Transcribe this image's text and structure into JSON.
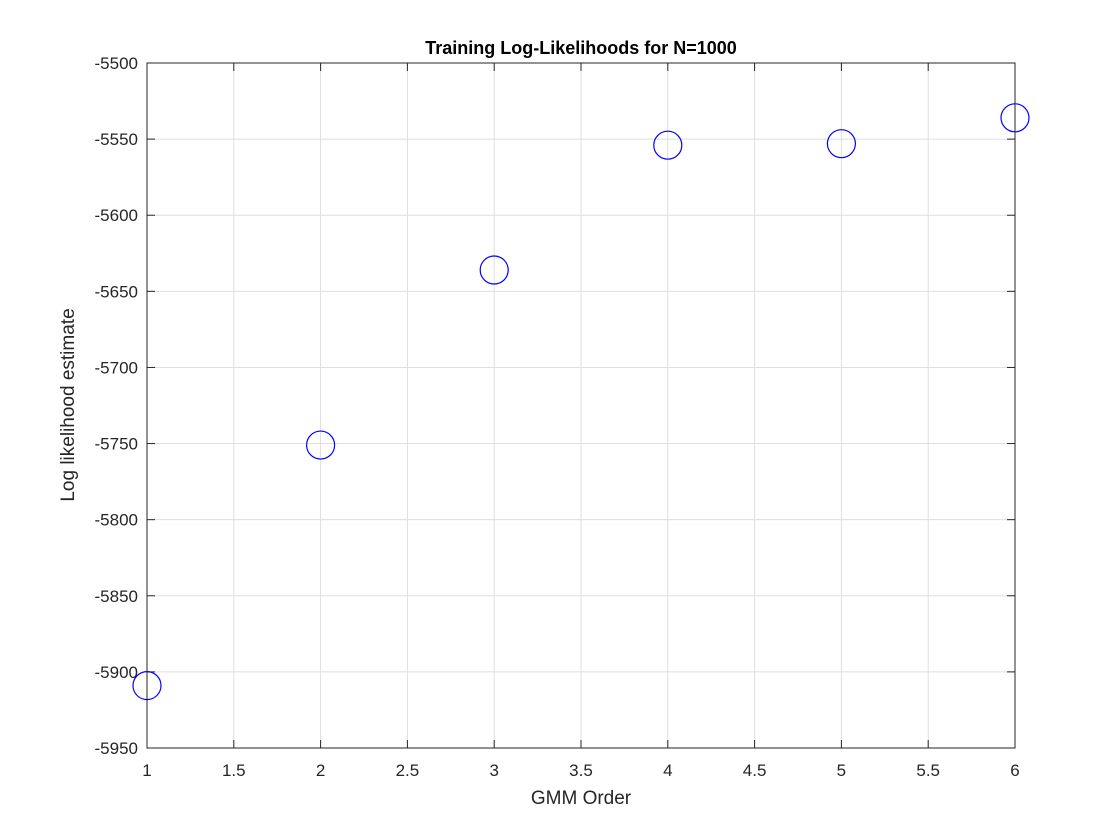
{
  "chart_data": {
    "type": "scatter",
    "title": "Training Log-Likelihoods for N=1000",
    "xlabel": "GMM Order",
    "ylabel": "Log likelihood estimate",
    "xlim": [
      1,
      6
    ],
    "ylim": [
      -5950,
      -5500
    ],
    "xticks": [
      1,
      1.5,
      2,
      2.5,
      3,
      3.5,
      4,
      4.5,
      5,
      5.5,
      6
    ],
    "xtick_labels": [
      "1",
      "1.5",
      "2",
      "2.5",
      "3",
      "3.5",
      "4",
      "4.5",
      "5",
      "5.5",
      "6"
    ],
    "yticks": [
      -5950,
      -5900,
      -5850,
      -5800,
      -5750,
      -5700,
      -5650,
      -5600,
      -5550,
      -5500
    ],
    "ytick_labels": [
      "-5950",
      "-5900",
      "-5850",
      "-5800",
      "-5750",
      "-5700",
      "-5650",
      "-5600",
      "-5550",
      "-5500"
    ],
    "grid": true,
    "legend": false,
    "marker": "circle-open",
    "series": [
      {
        "color": "#0000ff",
        "x": [
          1,
          2,
          3,
          4,
          5,
          6
        ],
        "y": [
          -5909,
          -5751,
          -5636,
          -5554,
          -5553,
          -5536
        ]
      }
    ],
    "colors": {
      "axis": "#262626",
      "grid": "#dfdfdf",
      "text": "#000000"
    }
  }
}
